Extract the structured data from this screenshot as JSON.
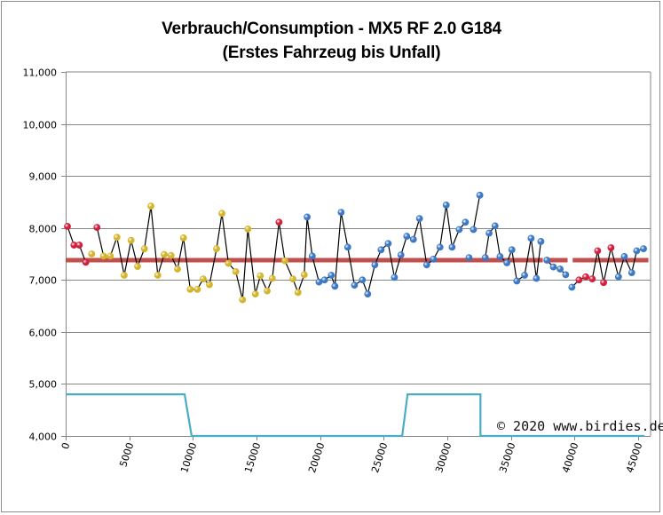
{
  "chart_data": {
    "type": "line",
    "title": "Verbrauch/Consumption - MX5 RF 2.0 G184",
    "subtitle": "(Erstes Fahrzeug bis Unfall)",
    "xlabel": "",
    "ylabel": "",
    "xlim": [
      0,
      46000
    ],
    "ylim": [
      4000,
      11000
    ],
    "x_ticks": [
      0,
      5000,
      10000,
      15000,
      20000,
      25000,
      30000,
      35000,
      40000,
      45000
    ],
    "x_tick_labels": [
      "0",
      "5000",
      "10000",
      "15000",
      "20000",
      "25000",
      "30000",
      "35000",
      "40000",
      "45000"
    ],
    "y_ticks": [
      4000,
      5000,
      6000,
      7000,
      8000,
      9000,
      10000,
      11000
    ],
    "y_tick_labels": [
      "4,000",
      "5,000",
      "6,000",
      "7,000",
      "8,000",
      "9,000",
      "10,000",
      "11,000"
    ],
    "grid": "horizontal",
    "annotation": "© 2020 www.birdies.de",
    "colors": {
      "red": "#d21f3c",
      "yellow": "#d4b52a",
      "blue": "#3b78c6",
      "average": "#c0504d",
      "step": "#4bacc6",
      "connector": "#000000"
    },
    "series": [
      {
        "name": "consumption",
        "points": [
          {
            "x": 140,
            "y": 8030,
            "c": "red"
          },
          {
            "x": 650,
            "y": 7670,
            "c": "red"
          },
          {
            "x": 1070,
            "y": 7670,
            "c": "red"
          },
          {
            "x": 1580,
            "y": 7340,
            "c": "red"
          },
          {
            "x": 2040,
            "y": 7500,
            "c": "yellow",
            "brk": true
          },
          {
            "x": 2460,
            "y": 8010,
            "c": "red",
            "brk": true
          },
          {
            "x": 2980,
            "y": 7460,
            "c": "yellow"
          },
          {
            "x": 3510,
            "y": 7460,
            "c": "yellow"
          },
          {
            "x": 4030,
            "y": 7820,
            "c": "yellow"
          },
          {
            "x": 4600,
            "y": 7090,
            "c": "yellow"
          },
          {
            "x": 5140,
            "y": 7760,
            "c": "yellow"
          },
          {
            "x": 5650,
            "y": 7260,
            "c": "yellow"
          },
          {
            "x": 6190,
            "y": 7600,
            "c": "yellow"
          },
          {
            "x": 6700,
            "y": 8420,
            "c": "yellow"
          },
          {
            "x": 7240,
            "y": 7090,
            "c": "yellow"
          },
          {
            "x": 7740,
            "y": 7490,
            "c": "yellow"
          },
          {
            "x": 8280,
            "y": 7470,
            "c": "yellow"
          },
          {
            "x": 8790,
            "y": 7210,
            "c": "yellow"
          },
          {
            "x": 9260,
            "y": 7810,
            "c": "yellow"
          },
          {
            "x": 9790,
            "y": 6820,
            "c": "yellow"
          },
          {
            "x": 10350,
            "y": 6820,
            "c": "yellow"
          },
          {
            "x": 10810,
            "y": 7020,
            "c": "yellow"
          },
          {
            "x": 11300,
            "y": 6910,
            "c": "yellow"
          },
          {
            "x": 11860,
            "y": 7600,
            "c": "yellow"
          },
          {
            "x": 12280,
            "y": 8280,
            "c": "yellow"
          },
          {
            "x": 12790,
            "y": 7320,
            "c": "yellow"
          },
          {
            "x": 13370,
            "y": 7160,
            "c": "yellow"
          },
          {
            "x": 13900,
            "y": 6620,
            "c": "yellow"
          },
          {
            "x": 14320,
            "y": 7980,
            "c": "yellow"
          },
          {
            "x": 14910,
            "y": 6730,
            "c": "yellow"
          },
          {
            "x": 15300,
            "y": 7080,
            "c": "yellow"
          },
          {
            "x": 15840,
            "y": 6790,
            "c": "yellow"
          },
          {
            "x": 16240,
            "y": 7030,
            "c": "yellow"
          },
          {
            "x": 16770,
            "y": 8110,
            "c": "red"
          },
          {
            "x": 17230,
            "y": 7370,
            "c": "yellow"
          },
          {
            "x": 17860,
            "y": 7020,
            "c": "yellow"
          },
          {
            "x": 18260,
            "y": 6760,
            "c": "yellow"
          },
          {
            "x": 18750,
            "y": 7100,
            "c": "yellow"
          },
          {
            "x": 18980,
            "y": 8210,
            "c": "blue"
          },
          {
            "x": 19380,
            "y": 7460,
            "c": "blue"
          },
          {
            "x": 19910,
            "y": 6960,
            "c": "blue"
          },
          {
            "x": 20350,
            "y": 7000,
            "c": "blue"
          },
          {
            "x": 20880,
            "y": 7090,
            "c": "blue"
          },
          {
            "x": 21160,
            "y": 6880,
            "c": "blue"
          },
          {
            "x": 21650,
            "y": 8300,
            "c": "blue"
          },
          {
            "x": 22170,
            "y": 7630,
            "c": "blue"
          },
          {
            "x": 22700,
            "y": 6900,
            "c": "blue"
          },
          {
            "x": 23320,
            "y": 7000,
            "c": "blue"
          },
          {
            "x": 23740,
            "y": 6730,
            "c": "blue"
          },
          {
            "x": 24300,
            "y": 7290,
            "c": "blue"
          },
          {
            "x": 24790,
            "y": 7580,
            "c": "blue"
          },
          {
            "x": 25350,
            "y": 7700,
            "c": "blue"
          },
          {
            "x": 25840,
            "y": 7050,
            "c": "blue"
          },
          {
            "x": 26350,
            "y": 7480,
            "c": "blue"
          },
          {
            "x": 26810,
            "y": 7840,
            "c": "blue"
          },
          {
            "x": 27330,
            "y": 7780,
            "c": "blue"
          },
          {
            "x": 27810,
            "y": 8180,
            "c": "blue"
          },
          {
            "x": 28380,
            "y": 7290,
            "c": "blue"
          },
          {
            "x": 28910,
            "y": 7400,
            "c": "blue"
          },
          {
            "x": 29420,
            "y": 7630,
            "c": "blue"
          },
          {
            "x": 29910,
            "y": 8440,
            "c": "blue"
          },
          {
            "x": 30370,
            "y": 7630,
            "c": "blue"
          },
          {
            "x": 30930,
            "y": 7970,
            "c": "blue"
          },
          {
            "x": 31420,
            "y": 8110,
            "c": "blue"
          },
          {
            "x": 31700,
            "y": 7430,
            "c": "blue",
            "brk": true
          },
          {
            "x": 32050,
            "y": 7970,
            "c": "blue",
            "brk": true
          },
          {
            "x": 32550,
            "y": 8630,
            "c": "blue"
          },
          {
            "x": 32980,
            "y": 7430,
            "c": "blue",
            "brk": true
          },
          {
            "x": 33280,
            "y": 7900,
            "c": "blue"
          },
          {
            "x": 33750,
            "y": 8040,
            "c": "blue"
          },
          {
            "x": 34140,
            "y": 7450,
            "c": "blue"
          },
          {
            "x": 34680,
            "y": 7330,
            "c": "blue"
          },
          {
            "x": 35070,
            "y": 7580,
            "c": "blue"
          },
          {
            "x": 35460,
            "y": 6980,
            "c": "blue"
          },
          {
            "x": 36070,
            "y": 7090,
            "c": "blue"
          },
          {
            "x": 36580,
            "y": 7800,
            "c": "blue"
          },
          {
            "x": 37000,
            "y": 7030,
            "c": "blue"
          },
          {
            "x": 37350,
            "y": 7740,
            "c": "blue"
          },
          {
            "x": 37820,
            "y": 7380,
            "c": "blue",
            "brk": true
          },
          {
            "x": 38330,
            "y": 7250,
            "c": "blue"
          },
          {
            "x": 38860,
            "y": 7210,
            "c": "blue"
          },
          {
            "x": 39300,
            "y": 7100,
            "c": "blue"
          },
          {
            "x": 39790,
            "y": 6860,
            "c": "blue",
            "brk": true
          },
          {
            "x": 40350,
            "y": 7000,
            "c": "red"
          },
          {
            "x": 40880,
            "y": 7060,
            "c": "red"
          },
          {
            "x": 41390,
            "y": 7020,
            "c": "red"
          },
          {
            "x": 41810,
            "y": 7560,
            "c": "red"
          },
          {
            "x": 42280,
            "y": 6950,
            "c": "red"
          },
          {
            "x": 42860,
            "y": 7620,
            "c": "red"
          },
          {
            "x": 43450,
            "y": 7060,
            "c": "blue"
          },
          {
            "x": 43910,
            "y": 7450,
            "c": "blue"
          },
          {
            "x": 44490,
            "y": 7140,
            "c": "blue"
          },
          {
            "x": 44880,
            "y": 7560,
            "c": "blue"
          },
          {
            "x": 45420,
            "y": 7600,
            "c": "blue"
          }
        ]
      },
      {
        "name": "average",
        "value": 7380,
        "segments": [
          [
            0,
            37500
          ],
          [
            37750,
            39450
          ],
          [
            39850,
            45800
          ]
        ]
      },
      {
        "name": "step",
        "points": [
          [
            0,
            4800
          ],
          [
            9350,
            4800
          ],
          [
            9900,
            4000
          ],
          [
            26450,
            4000
          ],
          [
            26870,
            4800
          ],
          [
            32600,
            4800
          ],
          [
            32600,
            4000
          ],
          [
            45500,
            4000
          ]
        ]
      }
    ]
  }
}
